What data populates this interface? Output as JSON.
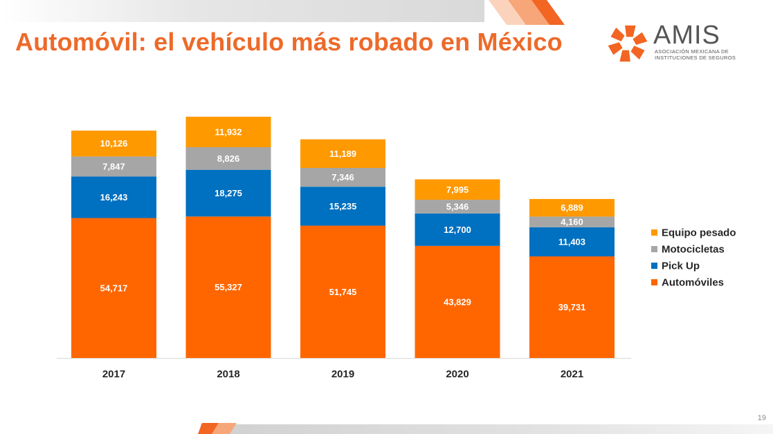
{
  "slide": {
    "title": "Automóvil: el vehículo más robado en México",
    "page_number": "19"
  },
  "logo": {
    "name": "AMIS",
    "subtitle_line1": "ASOCIACIÓN MEXICANA DE",
    "subtitle_line2": "INSTITUCIONES DE SEGUROS",
    "color": "#F26522"
  },
  "chart_data": {
    "type": "bar",
    "stacked": true,
    "categories": [
      "2017",
      "2018",
      "2019",
      "2020",
      "2021"
    ],
    "series": [
      {
        "name": "Automóviles",
        "values": [
          54717,
          55327,
          51745,
          43829,
          39731
        ],
        "labels": [
          "54,717",
          "55,327",
          "51,745",
          "43,829",
          "39,731"
        ],
        "color": "#FF6600"
      },
      {
        "name": "Pick Up",
        "values": [
          16243,
          18275,
          15235,
          12700,
          11403
        ],
        "labels": [
          "16,243",
          "18,275",
          "15,235",
          "12,700",
          "11,403"
        ],
        "color": "#0070C0"
      },
      {
        "name": "Motocicletas",
        "values": [
          7847,
          8826,
          7346,
          5346,
          4160
        ],
        "labels": [
          "7,847",
          "8,826",
          "7,346",
          "5,346",
          "4,160"
        ],
        "color": "#A6A6A6"
      },
      {
        "name": "Equipo pesado",
        "values": [
          10126,
          11932,
          11189,
          7995,
          6889
        ],
        "labels": [
          "10,126",
          "11,932",
          "11,189",
          "7,995",
          "6,889"
        ],
        "color": "#FF9900"
      }
    ],
    "legend": [
      "Equipo pesado",
      "Motocicletas",
      "Pick Up",
      "Automóviles"
    ],
    "legend_position": "right",
    "title": "",
    "xlabel": "",
    "ylabel": "",
    "ylim": [
      0,
      100000
    ],
    "grid": false,
    "axis_visible": false
  }
}
